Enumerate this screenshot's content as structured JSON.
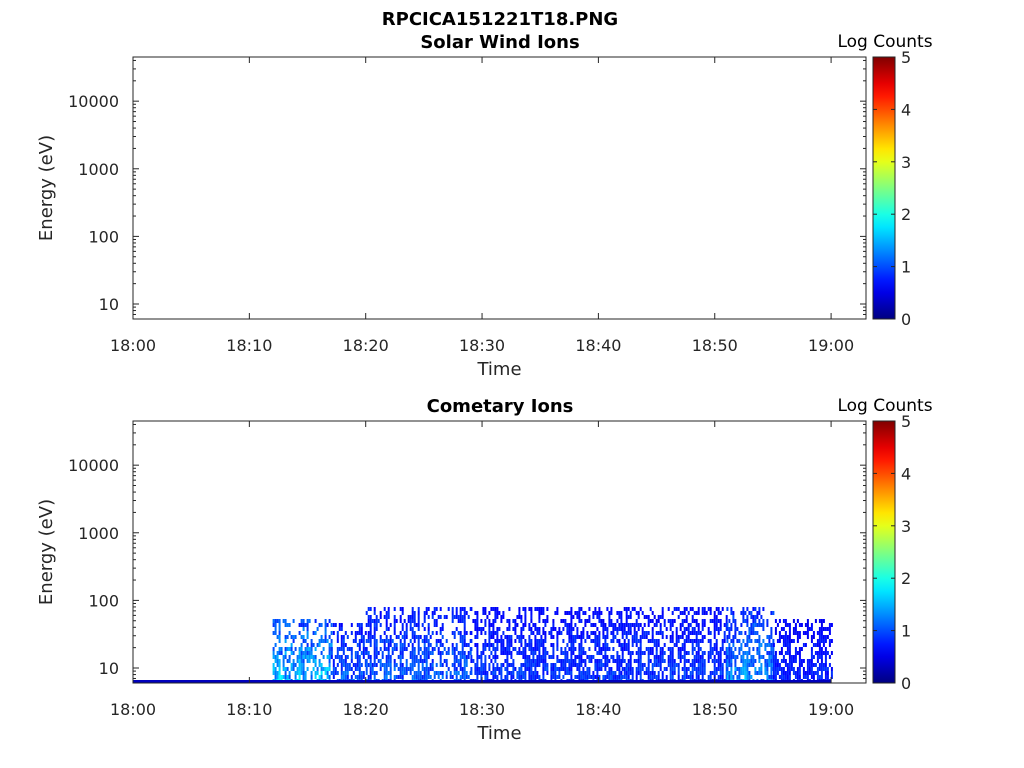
{
  "figure_title": "RPCICA151221T18.PNG",
  "chart_data": [
    {
      "type": "heatmap",
      "title": "Solar Wind Ions",
      "xlabel": "Time",
      "ylabel": "Energy (eV)",
      "x_ticks": [
        "18:00",
        "18:10",
        "18:20",
        "18:30",
        "18:40",
        "18:50",
        "19:00"
      ],
      "x_range": [
        "18:00",
        "19:03"
      ],
      "y_scale": "log",
      "y_ticks": [
        10,
        100,
        1000,
        10000
      ],
      "y_tick_labels": [
        "10",
        "100",
        "1000",
        "10000"
      ],
      "y_range": [
        6,
        45000
      ],
      "colorbar": {
        "label": "Log Counts",
        "range": [
          0,
          5
        ],
        "ticks": [
          "0",
          "1",
          "2",
          "3",
          "4",
          "5"
        ],
        "colormap": "jet"
      },
      "data_present": false
    },
    {
      "type": "heatmap",
      "title": "Cometary Ions",
      "xlabel": "Time",
      "ylabel": "Energy (eV)",
      "x_ticks": [
        "18:00",
        "18:10",
        "18:20",
        "18:30",
        "18:40",
        "18:50",
        "19:00"
      ],
      "x_range": [
        "18:00",
        "19:03"
      ],
      "y_scale": "log",
      "y_ticks": [
        10,
        100,
        1000,
        10000
      ],
      "y_tick_labels": [
        "10",
        "100",
        "1000",
        "10000"
      ],
      "y_range": [
        6,
        45000
      ],
      "colorbar": {
        "label": "Log Counts",
        "range": [
          0,
          5
        ],
        "ticks": [
          "0",
          "1",
          "2",
          "3",
          "4",
          "5"
        ],
        "colormap": "jet"
      },
      "data_present": true,
      "data_time_range": [
        "18:12",
        "19:00"
      ],
      "data_energy_max": 80,
      "segments": [
        {
          "start": "18:12",
          "end": "18:17",
          "max_energy": 60,
          "level": 1.0
        },
        {
          "start": "18:17",
          "end": "18:20",
          "max_energy": 50,
          "level": 0.6
        },
        {
          "start": "18:20",
          "end": "18:29",
          "max_energy": 80,
          "level": 0.6
        },
        {
          "start": "18:29",
          "end": "18:42",
          "max_energy": 80,
          "level": 0.45
        },
        {
          "start": "18:42",
          "end": "18:51",
          "max_energy": 80,
          "level": 0.45
        },
        {
          "start": "18:51",
          "end": "18:55",
          "max_energy": 80,
          "level": 0.8
        },
        {
          "start": "18:55",
          "end": "19:00",
          "max_energy": 60,
          "level": 0.35
        }
      ],
      "hotspots": [
        {
          "time": "18:12.6",
          "level": 1.9
        },
        {
          "time": "18:14.2",
          "level": 1.7
        },
        {
          "time": "18:52.5",
          "level": 1.5
        },
        {
          "time": "18:24.0",
          "level": 1.0
        }
      ]
    }
  ]
}
